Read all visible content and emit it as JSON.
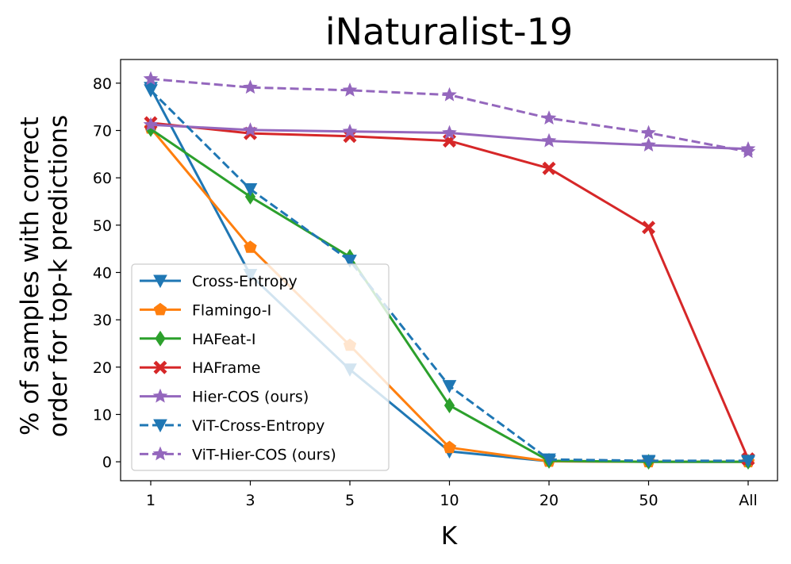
{
  "chart_data": {
    "type": "line",
    "title": "iNaturalist-19",
    "xlabel": "K",
    "ylabel_line1": "% of samples with correct",
    "ylabel_line2": "order for top-k predictions",
    "categories": [
      "1",
      "3",
      "5",
      "10",
      "20",
      "50",
      "All"
    ],
    "ylim": [
      -4,
      85
    ],
    "yticks": [
      0,
      10,
      20,
      30,
      40,
      50,
      60,
      70,
      80
    ],
    "legend_position": "lower-left",
    "grid": false,
    "series": [
      {
        "name": "Cross-Entropy",
        "color": "#1f77b4",
        "dash": false,
        "marker": "triangle-down",
        "values": [
          79,
          39.5,
          19.5,
          2.2,
          0.1,
          0.0,
          0.0
        ]
      },
      {
        "name": "Flamingo-I",
        "color": "#ff7f0e",
        "dash": false,
        "marker": "pentagon",
        "values": [
          70.5,
          45.3,
          24.6,
          3.0,
          0.1,
          0.0,
          0.0
        ]
      },
      {
        "name": "HAFeat-I",
        "color": "#2ca02c",
        "dash": false,
        "marker": "diamond",
        "values": [
          70.3,
          56.0,
          43.3,
          11.9,
          0.2,
          0.0,
          0.0
        ]
      },
      {
        "name": "HAFrame",
        "color": "#d62728",
        "dash": false,
        "marker": "x",
        "values": [
          71.6,
          69.4,
          68.8,
          67.8,
          62.0,
          49.5,
          0.6
        ]
      },
      {
        "name": "Hier-COS (ours)",
        "color": "#9467bd",
        "dash": false,
        "marker": "star",
        "values": [
          71.2,
          70.1,
          69.8,
          69.5,
          67.8,
          66.9,
          66.1
        ]
      },
      {
        "name": "ViT-Cross-Entropy",
        "color": "#1f77b4",
        "dash": true,
        "marker": "triangle-down",
        "values": [
          78.5,
          57.6,
          42.5,
          16.0,
          0.5,
          0.2,
          0.2
        ]
      },
      {
        "name": "ViT-Hier-COS (ours)",
        "color": "#9467bd",
        "dash": true,
        "marker": "star",
        "values": [
          80.9,
          79.1,
          78.5,
          77.5,
          72.6,
          69.5,
          65.5
        ]
      }
    ]
  }
}
